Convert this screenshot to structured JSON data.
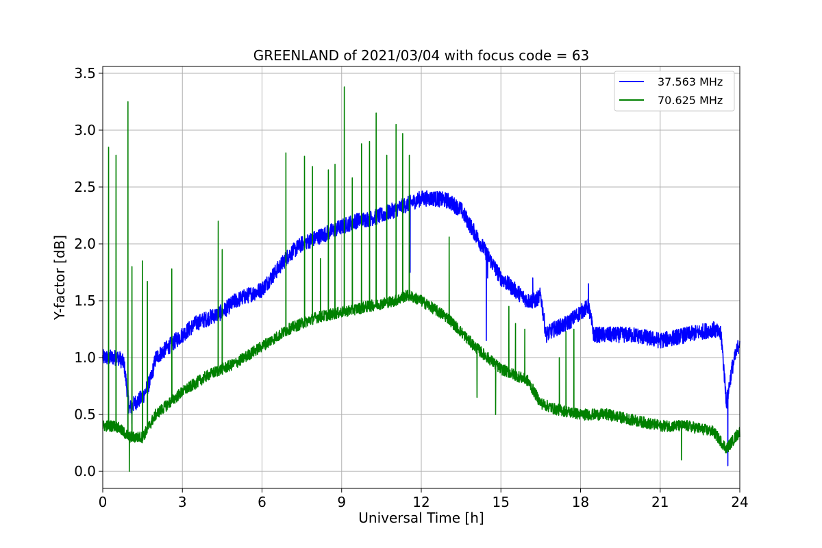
{
  "chart_data": {
    "type": "line",
    "title": "GREENLAND of 2021/03/04 with focus code = 63",
    "xlabel": "Universal Time [h]",
    "ylabel": "Y-factor [dB]",
    "xlim": [
      0,
      24
    ],
    "ylim": [
      -0.15,
      3.56
    ],
    "x_ticks": [
      0,
      3,
      6,
      9,
      12,
      15,
      18,
      21,
      24
    ],
    "y_ticks": [
      0.0,
      0.5,
      1.0,
      1.5,
      2.0,
      2.5,
      3.0,
      3.5
    ],
    "x_tick_labels": [
      "0",
      "3",
      "6",
      "9",
      "12",
      "15",
      "18",
      "21",
      "24"
    ],
    "y_tick_labels": [
      "0.0",
      "0.5",
      "1.0",
      "1.5",
      "2.0",
      "2.5",
      "3.0",
      "3.5"
    ],
    "grid": true,
    "legend_position": "top-right",
    "series": [
      {
        "name": "37.563 MHz",
        "color": "#0000ff",
        "noise": 0.07,
        "x": [
          0,
          0.3,
          0.6,
          0.8,
          1.0,
          1.2,
          1.5,
          1.8,
          2.0,
          2.5,
          3.0,
          3.5,
          4.0,
          4.5,
          5.0,
          5.5,
          6.0,
          6.5,
          7.0,
          7.5,
          8.0,
          8.5,
          9.0,
          9.5,
          10.0,
          10.5,
          11.0,
          11.5,
          12.0,
          12.5,
          13.0,
          13.5,
          14.0,
          14.5,
          15.0,
          15.5,
          16.0,
          16.3,
          16.5,
          16.7,
          17.0,
          17.5,
          18.0,
          18.3,
          18.5,
          19.0,
          20.0,
          21.0,
          22.0,
          23.0,
          23.3,
          23.5,
          23.7,
          24.0
        ],
        "y": [
          1.0,
          1.0,
          1.0,
          0.95,
          0.55,
          0.6,
          0.65,
          0.8,
          1.0,
          1.1,
          1.2,
          1.3,
          1.35,
          1.4,
          1.5,
          1.55,
          1.6,
          1.75,
          1.9,
          2.0,
          2.05,
          2.1,
          2.15,
          2.2,
          2.22,
          2.25,
          2.3,
          2.35,
          2.4,
          2.4,
          2.38,
          2.3,
          2.1,
          1.9,
          1.7,
          1.6,
          1.5,
          1.5,
          1.55,
          1.2,
          1.25,
          1.3,
          1.4,
          1.45,
          1.2,
          1.2,
          1.2,
          1.15,
          1.2,
          1.25,
          1.2,
          0.6,
          0.9,
          1.15
        ]
      },
      {
        "name": "70.625 MHz",
        "color": "#008000",
        "noise": 0.05,
        "x": [
          0,
          0.5,
          1.0,
          1.5,
          2.0,
          2.5,
          3.0,
          4.0,
          5.0,
          6.0,
          7.0,
          8.0,
          9.0,
          10.0,
          11.0,
          11.5,
          12.0,
          13.0,
          14.0,
          15.0,
          16.0,
          16.5,
          17.0,
          18.0,
          19.0,
          20.0,
          21.0,
          22.0,
          23.0,
          23.5,
          24.0
        ],
        "y": [
          0.4,
          0.4,
          0.3,
          0.3,
          0.5,
          0.6,
          0.7,
          0.85,
          0.95,
          1.1,
          1.25,
          1.35,
          1.4,
          1.45,
          1.5,
          1.55,
          1.5,
          1.35,
          1.1,
          0.9,
          0.8,
          0.6,
          0.55,
          0.5,
          0.5,
          0.45,
          0.4,
          0.4,
          0.35,
          0.2,
          0.35
        ]
      }
    ],
    "spikes": [
      {
        "series": 1,
        "x": 0.22,
        "y": 2.85
      },
      {
        "series": 1,
        "x": 0.5,
        "y": 2.78
      },
      {
        "series": 1,
        "x": 0.95,
        "y": 3.25
      },
      {
        "series": 1,
        "x": 1.1,
        "y": 1.8
      },
      {
        "series": 1,
        "x": 1.5,
        "y": 1.85
      },
      {
        "series": 1,
        "x": 1.68,
        "y": 1.67
      },
      {
        "series": 1,
        "x": 2.6,
        "y": 1.78
      },
      {
        "series": 1,
        "x": 4.35,
        "y": 2.2
      },
      {
        "series": 1,
        "x": 4.5,
        "y": 1.95
      },
      {
        "series": 1,
        "x": 6.9,
        "y": 2.8
      },
      {
        "series": 1,
        "x": 7.6,
        "y": 2.77
      },
      {
        "series": 1,
        "x": 7.9,
        "y": 2.68
      },
      {
        "series": 1,
        "x": 8.2,
        "y": 1.87
      },
      {
        "series": 1,
        "x": 8.5,
        "y": 2.65
      },
      {
        "series": 1,
        "x": 8.75,
        "y": 2.7
      },
      {
        "series": 1,
        "x": 9.1,
        "y": 3.38
      },
      {
        "series": 1,
        "x": 9.4,
        "y": 2.58
      },
      {
        "series": 1,
        "x": 9.75,
        "y": 2.88
      },
      {
        "series": 1,
        "x": 10.05,
        "y": 2.9
      },
      {
        "series": 1,
        "x": 10.3,
        "y": 3.15
      },
      {
        "series": 1,
        "x": 10.7,
        "y": 2.78
      },
      {
        "series": 1,
        "x": 11.05,
        "y": 3.05
      },
      {
        "series": 1,
        "x": 11.3,
        "y": 2.97
      },
      {
        "series": 1,
        "x": 11.55,
        "y": 2.78
      },
      {
        "series": 1,
        "x": 13.05,
        "y": 2.06
      },
      {
        "series": 1,
        "x": 15.3,
        "y": 1.45
      },
      {
        "series": 1,
        "x": 15.55,
        "y": 1.3
      },
      {
        "series": 1,
        "x": 15.9,
        "y": 1.25
      },
      {
        "series": 1,
        "x": 17.2,
        "y": 1.0
      },
      {
        "series": 1,
        "x": 17.45,
        "y": 1.23
      },
      {
        "series": 1,
        "x": 17.75,
        "y": 1.25
      },
      {
        "series": 0,
        "x": 11.58,
        "y": 1.75
      },
      {
        "series": 0,
        "x": 14.5,
        "y": 1.7
      },
      {
        "series": 0,
        "x": 16.2,
        "y": 1.7
      },
      {
        "series": 0,
        "x": 18.3,
        "y": 1.65
      }
    ],
    "dips": [
      {
        "series": 1,
        "x": 1.0,
        "y": 0.0
      },
      {
        "series": 1,
        "x": 14.1,
        "y": 0.65
      },
      {
        "series": 1,
        "x": 14.8,
        "y": 0.5
      },
      {
        "series": 0,
        "x": 1.1,
        "y": 0.42
      },
      {
        "series": 0,
        "x": 14.45,
        "y": 1.15
      },
      {
        "series": 0,
        "x": 23.55,
        "y": 0.05
      },
      {
        "series": 1,
        "x": 21.8,
        "y": 0.1
      }
    ]
  }
}
